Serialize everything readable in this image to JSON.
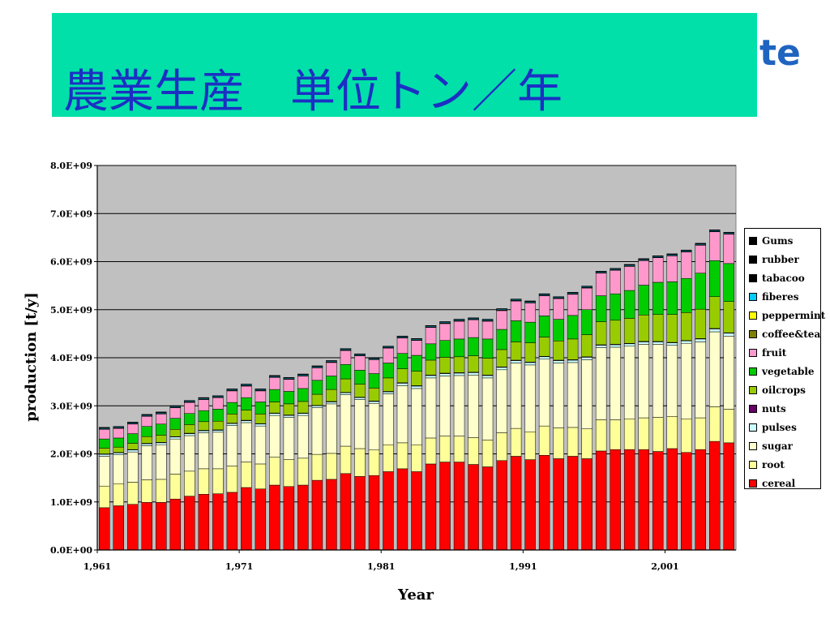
{
  "page": {
    "title": "農業生産　単位トン／年",
    "logo_fragment": "te"
  },
  "chart_data": {
    "type": "bar",
    "stacked": true,
    "title": "",
    "xlabel": "Year",
    "ylabel": "production [t/y]",
    "ylim": [
      0,
      8000000000
    ],
    "yticks": [
      "0.0E+00",
      "1.0E+09",
      "2.0E+09",
      "3.0E+09",
      "4.0E+09",
      "5.0E+09",
      "6.0E+09",
      "7.0E+09",
      "8.0E+09"
    ],
    "xtick_labels": [
      {
        "year": 1961,
        "label": "1,961"
      },
      {
        "year": 1971,
        "label": "1,971"
      },
      {
        "year": 1981,
        "label": "1,981"
      },
      {
        "year": 1991,
        "label": "1,991"
      },
      {
        "year": 2001,
        "label": "2,001"
      }
    ],
    "grid": "horizontal",
    "legend_position": "right",
    "plot_background": "#c0c0c0",
    "categories": [
      1961,
      1962,
      1963,
      1964,
      1965,
      1966,
      1967,
      1968,
      1969,
      1970,
      1971,
      1972,
      1973,
      1974,
      1975,
      1976,
      1977,
      1978,
      1979,
      1980,
      1981,
      1982,
      1983,
      1984,
      1985,
      1986,
      1987,
      1988,
      1989,
      1990,
      1991,
      1992,
      1993,
      1994,
      1995,
      1996,
      1997,
      1998,
      1999,
      2000,
      2001,
      2002,
      2003,
      2004,
      2005
    ],
    "series": [
      {
        "name": "cereal",
        "color": "#ff0000",
        "values": [
          0.88,
          0.92,
          0.95,
          0.99,
          0.99,
          1.06,
          1.12,
          1.16,
          1.17,
          1.2,
          1.3,
          1.27,
          1.35,
          1.32,
          1.35,
          1.45,
          1.47,
          1.59,
          1.53,
          1.55,
          1.63,
          1.69,
          1.63,
          1.79,
          1.83,
          1.83,
          1.78,
          1.73,
          1.86,
          1.95,
          1.88,
          1.97,
          1.9,
          1.95,
          1.9,
          2.06,
          2.09,
          2.09,
          2.09,
          2.05,
          2.11,
          2.03,
          2.09,
          2.26,
          2.23
        ]
      },
      {
        "name": "root",
        "color": "#ffff99",
        "values": [
          0.45,
          0.46,
          0.46,
          0.47,
          0.48,
          0.52,
          0.52,
          0.53,
          0.52,
          0.55,
          0.53,
          0.52,
          0.58,
          0.56,
          0.56,
          0.54,
          0.54,
          0.57,
          0.58,
          0.53,
          0.56,
          0.54,
          0.56,
          0.54,
          0.54,
          0.54,
          0.56,
          0.56,
          0.58,
          0.58,
          0.58,
          0.61,
          0.64,
          0.6,
          0.62,
          0.65,
          0.62,
          0.64,
          0.66,
          0.71,
          0.67,
          0.7,
          0.66,
          0.72,
          0.7
        ]
      },
      {
        "name": "sugar",
        "color": "#ffffcc",
        "values": [
          0.62,
          0.6,
          0.63,
          0.71,
          0.72,
          0.73,
          0.74,
          0.75,
          0.76,
          0.84,
          0.82,
          0.79,
          0.87,
          0.88,
          0.89,
          0.97,
          1.03,
          1.07,
          1.02,
          0.97,
          1.06,
          1.19,
          1.17,
          1.25,
          1.25,
          1.26,
          1.3,
          1.29,
          1.31,
          1.36,
          1.39,
          1.39,
          1.35,
          1.35,
          1.44,
          1.5,
          1.51,
          1.51,
          1.53,
          1.52,
          1.48,
          1.57,
          1.58,
          1.56,
          1.52
        ]
      },
      {
        "name": "pulses",
        "color": "#ccffff",
        "values": [
          0.04,
          0.04,
          0.04,
          0.04,
          0.04,
          0.04,
          0.04,
          0.04,
          0.04,
          0.04,
          0.04,
          0.04,
          0.04,
          0.04,
          0.04,
          0.04,
          0.04,
          0.04,
          0.04,
          0.04,
          0.04,
          0.05,
          0.05,
          0.05,
          0.05,
          0.05,
          0.05,
          0.05,
          0.05,
          0.05,
          0.05,
          0.05,
          0.05,
          0.05,
          0.05,
          0.05,
          0.05,
          0.05,
          0.05,
          0.05,
          0.05,
          0.05,
          0.06,
          0.06,
          0.06
        ]
      },
      {
        "name": "nuts",
        "color": "#660066",
        "values": [
          0.01,
          0.01,
          0.01,
          0.01,
          0.01,
          0.01,
          0.01,
          0.01,
          0.01,
          0.01,
          0.01,
          0.01,
          0.01,
          0.01,
          0.01,
          0.01,
          0.01,
          0.01,
          0.01,
          0.01,
          0.01,
          0.01,
          0.01,
          0.01,
          0.01,
          0.01,
          0.01,
          0.01,
          0.01,
          0.01,
          0.01,
          0.01,
          0.01,
          0.01,
          0.01,
          0.01,
          0.01,
          0.01,
          0.01,
          0.01,
          0.01,
          0.01,
          0.01,
          0.01,
          0.01
        ]
      },
      {
        "name": "oilcrops",
        "color": "#99cc00",
        "values": [
          0.12,
          0.11,
          0.13,
          0.14,
          0.15,
          0.15,
          0.18,
          0.18,
          0.18,
          0.19,
          0.21,
          0.2,
          0.23,
          0.23,
          0.24,
          0.23,
          0.25,
          0.28,
          0.27,
          0.27,
          0.28,
          0.29,
          0.3,
          0.31,
          0.33,
          0.33,
          0.34,
          0.35,
          0.36,
          0.38,
          0.4,
          0.4,
          0.4,
          0.43,
          0.46,
          0.48,
          0.5,
          0.52,
          0.55,
          0.56,
          0.58,
          0.58,
          0.61,
          0.66,
          0.65
        ]
      },
      {
        "name": "vegetable",
        "color": "#00cc00",
        "values": [
          0.19,
          0.19,
          0.2,
          0.21,
          0.23,
          0.23,
          0.23,
          0.23,
          0.25,
          0.24,
          0.26,
          0.25,
          0.26,
          0.26,
          0.27,
          0.29,
          0.28,
          0.3,
          0.29,
          0.3,
          0.31,
          0.32,
          0.33,
          0.34,
          0.35,
          0.37,
          0.38,
          0.4,
          0.42,
          0.44,
          0.43,
          0.44,
          0.45,
          0.49,
          0.52,
          0.54,
          0.55,
          0.58,
          0.62,
          0.67,
          0.68,
          0.71,
          0.75,
          0.75,
          0.79
        ]
      },
      {
        "name": "fruit",
        "color": "#ff99cc",
        "values": [
          0.2,
          0.2,
          0.2,
          0.21,
          0.21,
          0.22,
          0.23,
          0.23,
          0.24,
          0.24,
          0.24,
          0.23,
          0.25,
          0.25,
          0.26,
          0.26,
          0.28,
          0.29,
          0.3,
          0.29,
          0.31,
          0.32,
          0.31,
          0.34,
          0.35,
          0.37,
          0.37,
          0.37,
          0.39,
          0.41,
          0.4,
          0.42,
          0.43,
          0.44,
          0.45,
          0.47,
          0.49,
          0.5,
          0.51,
          0.51,
          0.54,
          0.55,
          0.58,
          0.6,
          0.61
        ]
      },
      {
        "name": "coffee&tea",
        "color": "#808000",
        "values": [
          0.01,
          0.01,
          0.01,
          0.01,
          0.01,
          0.01,
          0.01,
          0.01,
          0.01,
          0.01,
          0.01,
          0.01,
          0.01,
          0.01,
          0.01,
          0.01,
          0.01,
          0.01,
          0.01,
          0.01,
          0.01,
          0.01,
          0.01,
          0.01,
          0.01,
          0.01,
          0.01,
          0.01,
          0.01,
          0.01,
          0.01,
          0.01,
          0.01,
          0.01,
          0.01,
          0.01,
          0.01,
          0.01,
          0.01,
          0.01,
          0.01,
          0.01,
          0.01,
          0.01,
          0.01
        ]
      },
      {
        "name": "peppermint",
        "color": "#ffff00",
        "values": [
          0.002,
          0.002,
          0.002,
          0.002,
          0.002,
          0.002,
          0.002,
          0.002,
          0.002,
          0.002,
          0.002,
          0.002,
          0.002,
          0.002,
          0.002,
          0.002,
          0.002,
          0.002,
          0.002,
          0.002,
          0.002,
          0.002,
          0.002,
          0.002,
          0.002,
          0.002,
          0.002,
          0.002,
          0.002,
          0.002,
          0.002,
          0.002,
          0.002,
          0.002,
          0.002,
          0.002,
          0.002,
          0.002,
          0.002,
          0.002,
          0.002,
          0.002,
          0.002,
          0.002,
          0.002
        ]
      },
      {
        "name": "fiberes",
        "color": "#00ccff",
        "values": [
          0.02,
          0.02,
          0.02,
          0.02,
          0.02,
          0.02,
          0.02,
          0.02,
          0.02,
          0.02,
          0.02,
          0.02,
          0.02,
          0.02,
          0.02,
          0.02,
          0.02,
          0.02,
          0.02,
          0.02,
          0.02,
          0.02,
          0.02,
          0.02,
          0.02,
          0.02,
          0.02,
          0.02,
          0.02,
          0.02,
          0.02,
          0.02,
          0.02,
          0.02,
          0.02,
          0.02,
          0.02,
          0.02,
          0.02,
          0.02,
          0.02,
          0.02,
          0.02,
          0.02,
          0.02
        ]
      },
      {
        "name": "tabacoo",
        "color": "#000000",
        "values": [
          0.004,
          0.004,
          0.004,
          0.004,
          0.004,
          0.004,
          0.004,
          0.004,
          0.004,
          0.004,
          0.004,
          0.004,
          0.004,
          0.004,
          0.004,
          0.004,
          0.004,
          0.004,
          0.004,
          0.004,
          0.004,
          0.004,
          0.004,
          0.004,
          0.004,
          0.004,
          0.004,
          0.004,
          0.004,
          0.004,
          0.004,
          0.004,
          0.004,
          0.004,
          0.004,
          0.004,
          0.004,
          0.004,
          0.004,
          0.004,
          0.004,
          0.004,
          0.004,
          0.004,
          0.004
        ]
      },
      {
        "name": "rubber",
        "color": "#000000",
        "values": [
          0.004,
          0.004,
          0.004,
          0.004,
          0.004,
          0.004,
          0.004,
          0.004,
          0.004,
          0.004,
          0.004,
          0.004,
          0.004,
          0.004,
          0.004,
          0.004,
          0.004,
          0.004,
          0.004,
          0.004,
          0.004,
          0.004,
          0.004,
          0.004,
          0.004,
          0.004,
          0.004,
          0.004,
          0.004,
          0.004,
          0.004,
          0.004,
          0.004,
          0.004,
          0.004,
          0.004,
          0.004,
          0.004,
          0.004,
          0.004,
          0.004,
          0.004,
          0.004,
          0.004,
          0.004
        ]
      },
      {
        "name": "Gums",
        "color": "#000000",
        "values": [
          0.001,
          0.001,
          0.001,
          0.001,
          0.001,
          0.001,
          0.001,
          0.001,
          0.001,
          0.001,
          0.001,
          0.001,
          0.001,
          0.001,
          0.001,
          0.001,
          0.001,
          0.001,
          0.001,
          0.001,
          0.001,
          0.001,
          0.001,
          0.001,
          0.001,
          0.001,
          0.001,
          0.001,
          0.001,
          0.001,
          0.001,
          0.001,
          0.001,
          0.001,
          0.001,
          0.001,
          0.001,
          0.001,
          0.001,
          0.001,
          0.001,
          0.001,
          0.001,
          0.001,
          0.001
        ]
      }
    ],
    "value_unit_multiplier": 1000000000
  }
}
